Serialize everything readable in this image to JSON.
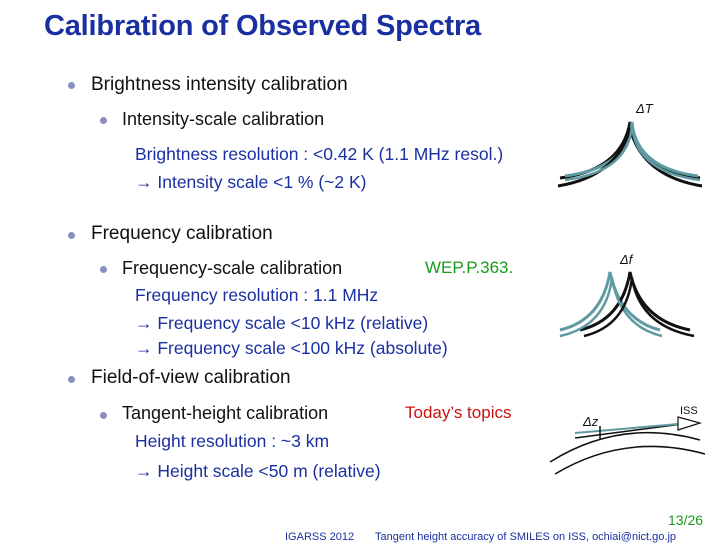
{
  "title": "Calibration of Observed Spectra",
  "sections": {
    "brightness": {
      "heading": "Brightness intensity calibration",
      "sub": "Intensity-scale calibration",
      "line1": "Brightness resolution : <0.42 K (1.1 MHz resol.)",
      "line2": "→ Intensity scale <1 % (~2 K)"
    },
    "frequency": {
      "heading": "Frequency calibration",
      "sub": "Frequency-scale calibration",
      "ref": "WEP.P.363.",
      "line1": "Frequency resolution : 1.1 MHz",
      "line2": "→ Frequency scale <10 kHz (relative)",
      "line3": "→ Frequency scale <100 kHz (absolute)"
    },
    "fov": {
      "heading": "Field-of-view calibration",
      "sub": "Tangent-height calibration",
      "tag": "Today’s topics",
      "line1": "Height resolution : ~3 km",
      "line2": "→ Height scale <50 m (relative)"
    }
  },
  "diagrams": {
    "brightness_label": "ΔT",
    "frequency_label": "Δf",
    "height_label": "Δz",
    "iss_label": "ISS"
  },
  "colors": {
    "title": "#1a2fa0",
    "curve_teal": "#5f9aa3",
    "page_number": "#1a9a1a",
    "highlight_red": "#cc1111",
    "highlight_green": "#1a9a1a"
  },
  "footer": {
    "page": "13/26",
    "conference": "IGARSS 2012",
    "talk": "Tangent height accuracy of SMILES on ISS, ochiai@nict.go.jp"
  }
}
